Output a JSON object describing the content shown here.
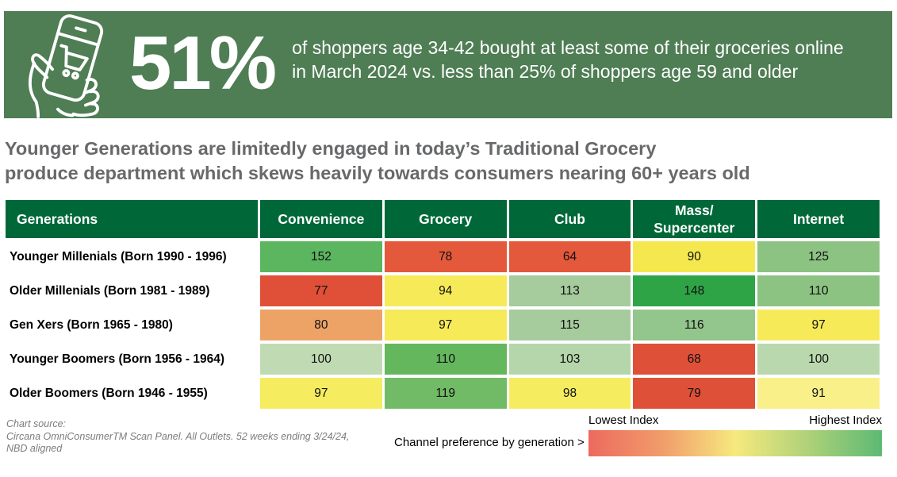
{
  "banner": {
    "bg_color": "#4f7d54",
    "icon": "hand-holding-phone-shopping-cart-icon",
    "stat": "51%",
    "description_line1": "of shoppers age 34-42 bought at least some of their groceries online",
    "description_line2": "in March 2024 vs. less than 25% of shoppers age 59 and older"
  },
  "headline": {
    "line1": "Younger Generations are limitedly engaged in today’s Traditional Grocery",
    "line2": "produce department which skews heavily towards consumers nearing 60+ years old"
  },
  "table": {
    "header_bg": "#006838",
    "columns": [
      "Generations",
      "Convenience",
      "Grocery",
      "Club",
      "Mass/\nSupercenter",
      "Internet"
    ],
    "rows": [
      {
        "label": "Younger Millenials (Born 1990 - 1996)",
        "cells": [
          {
            "value": 152,
            "color": "#5cb55f"
          },
          {
            "value": 78,
            "color": "#e4593b"
          },
          {
            "value": 64,
            "color": "#e4593b"
          },
          {
            "value": 90,
            "color": "#f5e84f"
          },
          {
            "value": 125,
            "color": "#8cc383"
          }
        ]
      },
      {
        "label": "Older Millenials (Born 1981 - 1989)",
        "cells": [
          {
            "value": 77,
            "color": "#e04f37"
          },
          {
            "value": 94,
            "color": "#f6ea58"
          },
          {
            "value": 113,
            "color": "#a6cb9d"
          },
          {
            "value": 148,
            "color": "#2ea447"
          },
          {
            "value": 110,
            "color": "#8cc383"
          }
        ]
      },
      {
        "label": "Gen Xers (Born 1965 - 1980)",
        "cells": [
          {
            "value": 80,
            "color": "#eda366"
          },
          {
            "value": 97,
            "color": "#f6ea58"
          },
          {
            "value": 115,
            "color": "#a6cb9d"
          },
          {
            "value": 116,
            "color": "#93c68c"
          },
          {
            "value": 97,
            "color": "#f6ea58"
          }
        ]
      },
      {
        "label": "Younger Boomers (Born 1956 - 1964)",
        "cells": [
          {
            "value": 100,
            "color": "#c0dbb3"
          },
          {
            "value": 110,
            "color": "#64b75d"
          },
          {
            "value": 103,
            "color": "#b5d5ab"
          },
          {
            "value": 68,
            "color": "#df5038"
          },
          {
            "value": 100,
            "color": "#bad8ae"
          }
        ]
      },
      {
        "label": "Older Boomers (Born 1946 - 1955)",
        "cells": [
          {
            "value": 97,
            "color": "#f6ec60"
          },
          {
            "value": 119,
            "color": "#72bb66"
          },
          {
            "value": 98,
            "color": "#f6ec60"
          },
          {
            "value": 79,
            "color": "#df5038"
          },
          {
            "value": 91,
            "color": "#f9f08a"
          }
        ]
      }
    ]
  },
  "footer": {
    "source_lines": [
      "Chart source:",
      "Circana OmniConsumerTM Scan Panel. All Outlets. 52 weeks ending 3/24/24,",
      "NBD aligned"
    ],
    "legend_caption": "Channel preference by generation >"
  },
  "legend": {
    "low_label": "Lowest Index",
    "high_label": "Highest Index",
    "gradient": [
      "#ec6a5e",
      "#f19c6b",
      "#f6e97e",
      "#aed179",
      "#5cba73"
    ]
  },
  "chart_data": {
    "type": "heatmap",
    "title": "Younger Generations are limitedly engaged in today’s Traditional Grocery produce department which skews heavily towards consumers nearing 60+ years old",
    "x_categories": [
      "Convenience",
      "Grocery",
      "Club",
      "Mass/Supercenter",
      "Internet"
    ],
    "y_categories": [
      "Younger Millenials (Born 1990 - 1996)",
      "Older Millenials (Born 1981 - 1989)",
      "Gen Xers (Born 1965 - 1980)",
      "Younger Boomers (Born 1956 - 1964)",
      "Older Boomers (Born 1946 - 1955)"
    ],
    "values": [
      [
        152,
        78,
        64,
        90,
        125
      ],
      [
        77,
        94,
        113,
        148,
        110
      ],
      [
        80,
        97,
        115,
        116,
        97
      ],
      [
        100,
        110,
        103,
        68,
        100
      ],
      [
        97,
        119,
        98,
        79,
        91
      ]
    ],
    "value_label": "Channel preference index",
    "legend": {
      "low": "Lowest Index",
      "high": "Highest Index",
      "position": "bottom-right"
    },
    "callout_stat": {
      "value": "51%",
      "text": "of shoppers age 34-42 bought at least some of their groceries online in March 2024 vs. less than 25% of shoppers age 59 and older"
    }
  }
}
